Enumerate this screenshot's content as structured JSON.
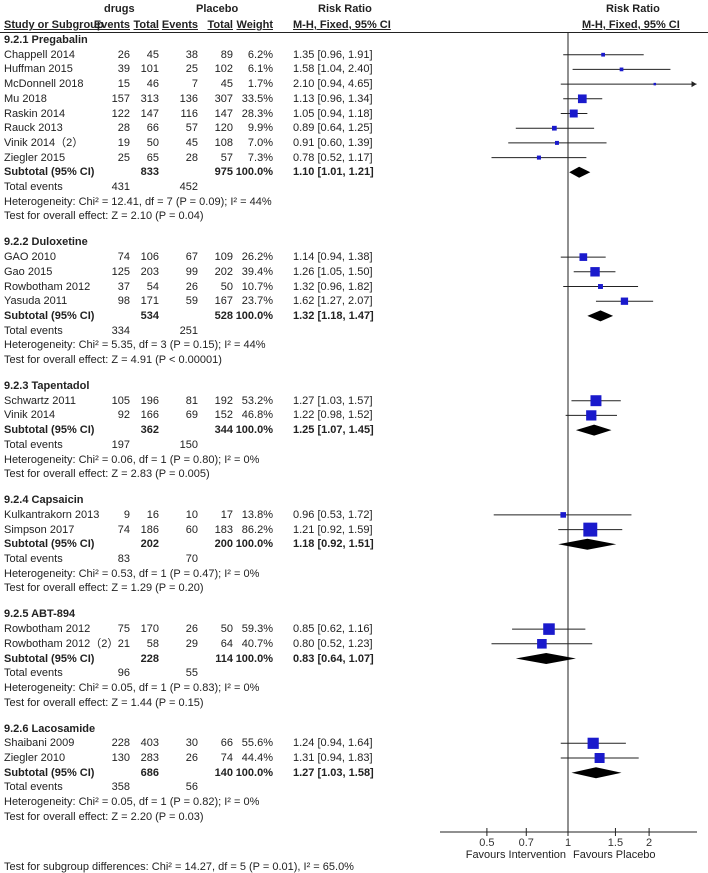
{
  "chart_data": {
    "type": "forest",
    "header": {
      "study_col": "Study or Subgroup",
      "group1": "drugs",
      "group2": "Placebo",
      "events": "Events",
      "total": "Total",
      "weight": "Weight",
      "rr_title": "Risk Ratio",
      "rr_method": "M-H, Fixed, 95% CI"
    },
    "xscale": "log",
    "xlim": [
      0.33,
      3.0
    ],
    "xticks": [
      "0.5",
      "0.7",
      "1",
      "1.5",
      "2"
    ],
    "xtick_values": [
      0.5,
      0.7,
      1,
      1.5,
      2
    ],
    "favours_left": "Favours Intervention",
    "favours_right": "Favours Placebo",
    "subgroups": [
      {
        "name": "9.2.1 Pregabalin",
        "studies": [
          {
            "study": "Chappell 2014",
            "e1": "26",
            "n1": "45",
            "e2": "38",
            "n2": "89",
            "weight": "6.2%",
            "ci": "1.35 [0.96, 1.91]",
            "est": 1.35,
            "lo": 0.96,
            "hi": 1.91,
            "w": 6.2
          },
          {
            "study": "Huffman 2015",
            "e1": "39",
            "n1": "101",
            "e2": "25",
            "n2": "102",
            "weight": "6.1%",
            "ci": "1.58 [1.04, 2.40]",
            "est": 1.58,
            "lo": 1.04,
            "hi": 2.4,
            "w": 6.1
          },
          {
            "study": "McDonnell 2018",
            "e1": "15",
            "n1": "46",
            "e2": "7",
            "n2": "45",
            "weight": "1.7%",
            "ci": "2.10 [0.94, 4.65]",
            "est": 2.1,
            "lo": 0.94,
            "hi": 4.65,
            "w": 1.7
          },
          {
            "study": "Mu 2018",
            "e1": "157",
            "n1": "313",
            "e2": "136",
            "n2": "307",
            "weight": "33.5%",
            "ci": "1.13 [0.96, 1.34]",
            "est": 1.13,
            "lo": 0.96,
            "hi": 1.34,
            "w": 33.5
          },
          {
            "study": "Raskin 2014",
            "e1": "122",
            "n1": "147",
            "e2": "116",
            "n2": "147",
            "weight": "28.3%",
            "ci": "1.05 [0.94, 1.18]",
            "est": 1.05,
            "lo": 0.94,
            "hi": 1.18,
            "w": 28.3
          },
          {
            "study": "Rauck 2013",
            "e1": "28",
            "n1": "66",
            "e2": "57",
            "n2": "120",
            "weight": "9.9%",
            "ci": "0.89 [0.64, 1.25]",
            "est": 0.89,
            "lo": 0.64,
            "hi": 1.25,
            "w": 9.9
          },
          {
            "study": "Vinik 2014（2）",
            "e1": "19",
            "n1": "50",
            "e2": "45",
            "n2": "108",
            "weight": "7.0%",
            "ci": "0.91 [0.60, 1.39]",
            "est": 0.91,
            "lo": 0.6,
            "hi": 1.39,
            "w": 7.0
          },
          {
            "study": "Ziegler 2015",
            "e1": "25",
            "n1": "65",
            "e2": "28",
            "n2": "57",
            "weight": "7.3%",
            "ci": "0.78 [0.52, 1.17]",
            "est": 0.78,
            "lo": 0.52,
            "hi": 1.17,
            "w": 7.3
          }
        ],
        "subtotal": {
          "label": "Subtotal (95% CI)",
          "n1": "833",
          "n2": "975",
          "weight": "100.0%",
          "ci": "1.10 [1.01, 1.21]",
          "est": 1.1,
          "lo": 1.01,
          "hi": 1.21
        },
        "total_events": {
          "label": "Total events",
          "e1": "431",
          "e2": "452"
        },
        "heterogeneity": "Heterogeneity: Chi² = 12.41, df = 7 (P = 0.09); I² = 44%",
        "overall": "Test for overall effect: Z = 2.10 (P = 0.04)"
      },
      {
        "name": "9.2.2 Duloxetine",
        "studies": [
          {
            "study": "GAO 2010",
            "e1": "74",
            "n1": "106",
            "e2": "67",
            "n2": "109",
            "weight": "26.2%",
            "ci": "1.14 [0.94, 1.38]",
            "est": 1.14,
            "lo": 0.94,
            "hi": 1.38,
            "w": 26.2
          },
          {
            "study": "Gao 2015",
            "e1": "125",
            "n1": "203",
            "e2": "99",
            "n2": "202",
            "weight": "39.4%",
            "ci": "1.26 [1.05, 1.50]",
            "est": 1.26,
            "lo": 1.05,
            "hi": 1.5,
            "w": 39.4
          },
          {
            "study": "Rowbotham 2012",
            "e1": "37",
            "n1": "54",
            "e2": "26",
            "n2": "50",
            "weight": "10.7%",
            "ci": "1.32 [0.96, 1.82]",
            "est": 1.32,
            "lo": 0.96,
            "hi": 1.82,
            "w": 10.7
          },
          {
            "study": "Yasuda 2011",
            "e1": "98",
            "n1": "171",
            "e2": "59",
            "n2": "167",
            "weight": "23.7%",
            "ci": "1.62 [1.27, 2.07]",
            "est": 1.62,
            "lo": 1.27,
            "hi": 2.07,
            "w": 23.7
          }
        ],
        "subtotal": {
          "label": "Subtotal (95% CI)",
          "n1": "534",
          "n2": "528",
          "weight": "100.0%",
          "ci": "1.32 [1.18, 1.47]",
          "est": 1.32,
          "lo": 1.18,
          "hi": 1.47
        },
        "total_events": {
          "label": "Total events",
          "e1": "334",
          "e2": "251"
        },
        "heterogeneity": "Heterogeneity: Chi² = 5.35, df = 3 (P = 0.15); I² = 44%",
        "overall": "Test for overall effect: Z = 4.91 (P < 0.00001)"
      },
      {
        "name": "9.2.3 Tapentadol",
        "studies": [
          {
            "study": "Schwartz 2011",
            "e1": "105",
            "n1": "196",
            "e2": "81",
            "n2": "192",
            "weight": "53.2%",
            "ci": "1.27 [1.03, 1.57]",
            "est": 1.27,
            "lo": 1.03,
            "hi": 1.57,
            "w": 53.2
          },
          {
            "study": "Vinik 2014",
            "e1": "92",
            "n1": "166",
            "e2": "69",
            "n2": "152",
            "weight": "46.8%",
            "ci": "1.22 [0.98, 1.52]",
            "est": 1.22,
            "lo": 0.98,
            "hi": 1.52,
            "w": 46.8
          }
        ],
        "subtotal": {
          "label": "Subtotal (95% CI)",
          "n1": "362",
          "n2": "344",
          "weight": "100.0%",
          "ci": "1.25 [1.07, 1.45]",
          "est": 1.25,
          "lo": 1.07,
          "hi": 1.45
        },
        "total_events": {
          "label": "Total events",
          "e1": "197",
          "e2": "150"
        },
        "heterogeneity": "Heterogeneity: Chi² = 0.06, df = 1 (P = 0.80); I² = 0%",
        "overall": "Test for overall effect: Z = 2.83 (P = 0.005)"
      },
      {
        "name": "9.2.4 Capsaicin",
        "studies": [
          {
            "study": "Kulkantrakorn 2013",
            "e1": "9",
            "n1": "16",
            "e2": "10",
            "n2": "17",
            "weight": "13.8%",
            "ci": "0.96 [0.53, 1.72]",
            "est": 0.96,
            "lo": 0.53,
            "hi": 1.72,
            "w": 13.8
          },
          {
            "study": "Simpson 2017",
            "e1": "74",
            "n1": "186",
            "e2": "60",
            "n2": "183",
            "weight": "86.2%",
            "ci": "1.21 [0.92, 1.59]",
            "est": 1.21,
            "lo": 0.92,
            "hi": 1.59,
            "w": 86.2
          }
        ],
        "subtotal": {
          "label": "Subtotal (95% CI)",
          "n1": "202",
          "n2": "200",
          "weight": "100.0%",
          "ci": "1.18 [0.92, 1.51]",
          "est": 1.18,
          "lo": 0.92,
          "hi": 1.51
        },
        "total_events": {
          "label": "Total events",
          "e1": "83",
          "e2": "70"
        },
        "heterogeneity": "Heterogeneity: Chi² = 0.53, df = 1 (P = 0.47); I² = 0%",
        "overall": "Test for overall effect: Z = 1.29 (P = 0.20)"
      },
      {
        "name": "9.2.5 ABT-894",
        "studies": [
          {
            "study": "Rowbotham 2012",
            "e1": "75",
            "n1": "170",
            "e2": "26",
            "n2": "50",
            "weight": "59.3%",
            "ci": "0.85 [0.62, 1.16]",
            "est": 0.85,
            "lo": 0.62,
            "hi": 1.16,
            "w": 59.3
          },
          {
            "study": "Rowbotham 2012（2）",
            "e1": "21",
            "n1": "58",
            "e2": "29",
            "n2": "64",
            "weight": "40.7%",
            "ci": "0.80 [0.52, 1.23]",
            "est": 0.8,
            "lo": 0.52,
            "hi": 1.23,
            "w": 40.7
          }
        ],
        "subtotal": {
          "label": "Subtotal (95% CI)",
          "n1": "228",
          "n2": "114",
          "weight": "100.0%",
          "ci": "0.83 [0.64, 1.07]",
          "est": 0.83,
          "lo": 0.64,
          "hi": 1.07
        },
        "total_events": {
          "label": "Total events",
          "e1": "96",
          "e2": "55"
        },
        "heterogeneity": "Heterogeneity: Chi² = 0.05, df = 1 (P = 0.83); I² = 0%",
        "overall": "Test for overall effect: Z = 1.44 (P = 0.15)"
      },
      {
        "name": "9.2.6 Lacosamide",
        "studies": [
          {
            "study": "Shaibani 2009",
            "e1": "228",
            "n1": "403",
            "e2": "30",
            "n2": "66",
            "weight": "55.6%",
            "ci": "1.24 [0.94, 1.64]",
            "est": 1.24,
            "lo": 0.94,
            "hi": 1.64,
            "w": 55.6
          },
          {
            "study": "Ziegler 2010",
            "e1": "130",
            "n1": "283",
            "e2": "26",
            "n2": "74",
            "weight": "44.4%",
            "ci": "1.31 [0.94, 1.83]",
            "est": 1.31,
            "lo": 0.94,
            "hi": 1.83,
            "w": 44.4
          }
        ],
        "subtotal": {
          "label": "Subtotal (95% CI)",
          "n1": "686",
          "n2": "140",
          "weight": "100.0%",
          "ci": "1.27 [1.03, 1.58]",
          "est": 1.27,
          "lo": 1.03,
          "hi": 1.58
        },
        "total_events": {
          "label": "Total events",
          "e1": "358",
          "e2": "56"
        },
        "heterogeneity": "Heterogeneity: Chi² = 0.05, df = 1 (P = 0.82); I² = 0%",
        "overall": "Test for overall effect: Z = 2.20 (P = 0.03)"
      }
    ],
    "subgroup_test": "Test for subgroup differences: Chi² = 14.27, df = 5 (P = 0.01), I² = 65.0%",
    "colors": {
      "square": "#1a1acc",
      "diamond": "#000000",
      "line": "#222222"
    }
  }
}
